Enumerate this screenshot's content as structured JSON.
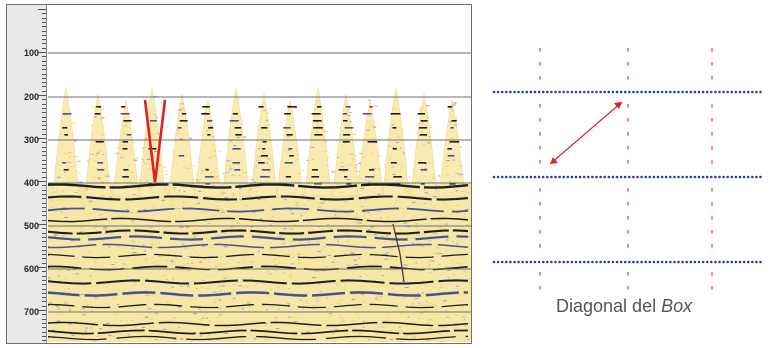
{
  "depth_axis": {
    "labels": [
      "100",
      "200",
      "300",
      "400",
      "500",
      "600",
      "700"
    ]
  },
  "caption": {
    "text": "Diagonal del",
    "italic": "Box"
  },
  "colors": {
    "grid_line": "#6d6d6d",
    "sediment_yellow": "#f2d56b",
    "reflector_dark": "#1e1e1e",
    "reflector_blue": "#4c4f8e",
    "marker_red": "#e41f1f",
    "dot_blue": "#2f3ca0",
    "dot_red": "#f06a6a",
    "arrow_red": "#d8232a",
    "caption_gray": "#555555"
  }
}
